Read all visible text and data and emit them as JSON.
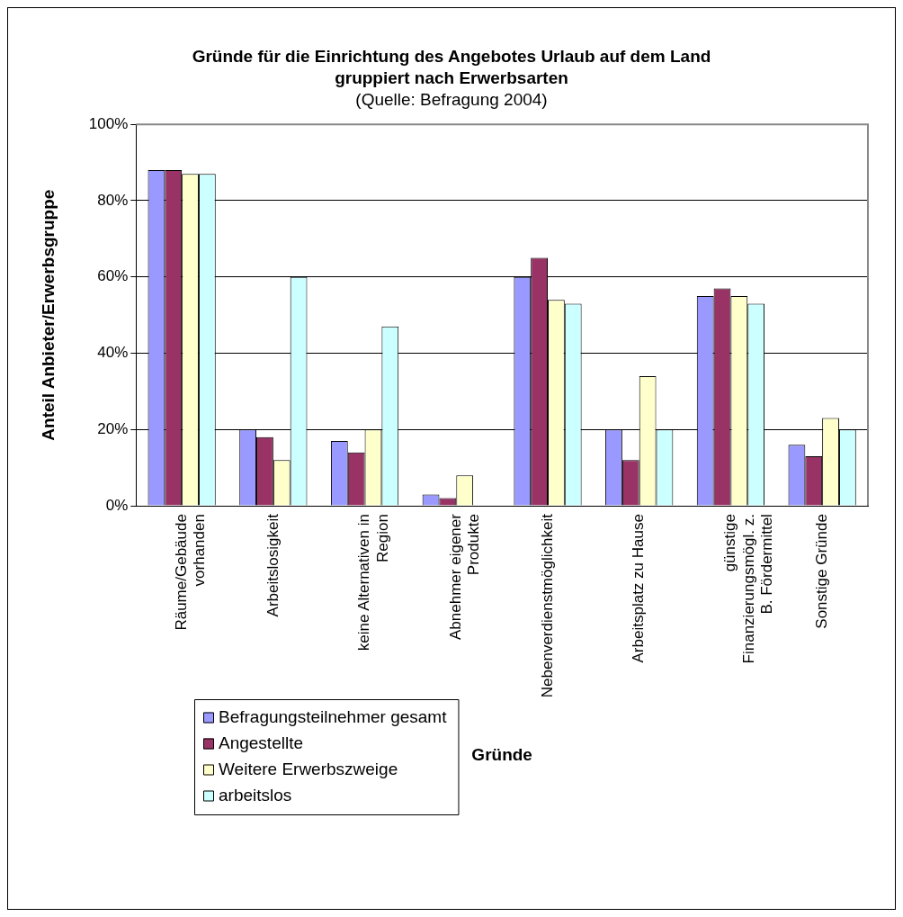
{
  "chart_data": {
    "type": "bar",
    "title": "Gründe für die Einrichtung des Angebotes Urlaub auf dem Land gruppiert nach Erwerbsarten",
    "subtitle": "(Quelle: Befragung 2004)",
    "xlabel": "Gründe",
    "ylabel": "Anteil Anbieter/Erwerbsgruppe",
    "categories": [
      "Räume/Gebäude vorhanden",
      "Arbeitslosigkeit",
      "keine Alternativen in Region",
      "Abnehmer eigener Produkte",
      "Nebenverdienstmöglichkeit",
      "Arbeitsplatz zu Hause",
      "günstige Finanzierungsmögl. z. B. Fördermittel",
      "Sonstige Gründe"
    ],
    "series": [
      {
        "name": "Befragungsteilnehmer gesamt",
        "color": "#9999ff",
        "values": [
          88,
          20,
          17,
          3,
          60,
          20,
          55,
          16
        ]
      },
      {
        "name": "Angestellte",
        "color": "#993366",
        "values": [
          88,
          18,
          14,
          2,
          65,
          12,
          57,
          13
        ]
      },
      {
        "name": "Weitere Erwerbszweige",
        "color": "#ffffcc",
        "values": [
          87,
          12,
          20,
          8,
          54,
          34,
          55,
          23
        ]
      },
      {
        "name": "arbeitslos",
        "color": "#ccffff",
        "values": [
          87,
          60,
          47,
          null,
          53,
          20,
          53,
          20
        ]
      }
    ],
    "ylim": [
      0,
      100
    ],
    "yticks": [
      {
        "value": 0,
        "label": "0%"
      },
      {
        "value": 20,
        "label": "20%"
      },
      {
        "value": 40,
        "label": "40%"
      },
      {
        "value": 60,
        "label": "60%"
      },
      {
        "value": 80,
        "label": "80%"
      },
      {
        "value": 100,
        "label": "100%"
      }
    ],
    "grid": "y",
    "legend": "bottom left"
  }
}
